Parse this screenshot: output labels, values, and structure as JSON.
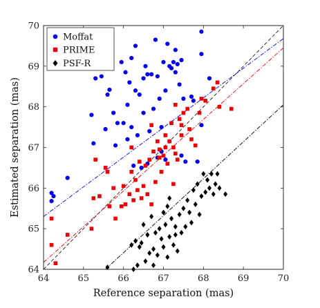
{
  "chart_data": {
    "type": "scatter",
    "xlabel": "Reference separation (mas)",
    "ylabel": "Estimated separation (mas)",
    "xlim": [
      64,
      70
    ],
    "ylim": [
      64,
      70
    ],
    "xticks": [
      "64",
      "65",
      "66",
      "67",
      "68",
      "69",
      "70"
    ],
    "yticks": [
      "64",
      "65",
      "66",
      "67",
      "68",
      "69",
      "70"
    ],
    "grid": false,
    "legend_position": "top-left",
    "identity_line": {
      "from": [
        64,
        64
      ],
      "to": [
        70,
        70
      ],
      "color": "#000000",
      "style": "dashed"
    },
    "series": [
      {
        "name": "Moffat",
        "marker": "circle",
        "color": "#0000ee",
        "fit": {
          "slope": 0.73,
          "intercept": 18.58
        },
        "points": [
          [
            64.2,
            65.88
          ],
          [
            64.25,
            65.8
          ],
          [
            64.2,
            65.68
          ],
          [
            64.6,
            66.25
          ],
          [
            65.2,
            67.8
          ],
          [
            65.3,
            68.7
          ],
          [
            65.25,
            67.1
          ],
          [
            65.45,
            68.75
          ],
          [
            65.55,
            67.45
          ],
          [
            65.6,
            68.3
          ],
          [
            65.65,
            68.42
          ],
          [
            65.75,
            67.85
          ],
          [
            65.8,
            67.05
          ],
          [
            65.85,
            67.6
          ],
          [
            65.95,
            69.1
          ],
          [
            66.0,
            67.6
          ],
          [
            66.05,
            68.85
          ],
          [
            66.1,
            67.2
          ],
          [
            66.1,
            68.05
          ],
          [
            66.15,
            68.6
          ],
          [
            66.2,
            69.2
          ],
          [
            66.2,
            67.5
          ],
          [
            66.25,
            66.55
          ],
          [
            66.3,
            68.4
          ],
          [
            66.3,
            69.5
          ],
          [
            66.35,
            67.3
          ],
          [
            66.4,
            68.3
          ],
          [
            66.45,
            66.5
          ],
          [
            66.5,
            68.7
          ],
          [
            66.5,
            67.85
          ],
          [
            66.55,
            69.0
          ],
          [
            66.6,
            66.6
          ],
          [
            66.6,
            68.8
          ],
          [
            66.65,
            67.4
          ],
          [
            66.7,
            68.8
          ],
          [
            66.75,
            67.95
          ],
          [
            66.8,
            69.65
          ],
          [
            66.85,
            68.75
          ],
          [
            66.85,
            66.75
          ],
          [
            66.9,
            68.2
          ],
          [
            66.95,
            67.5
          ],
          [
            67.0,
            69.1
          ],
          [
            67.05,
            68.4
          ],
          [
            67.1,
            69.55
          ],
          [
            67.15,
            69.0
          ],
          [
            67.15,
            67.15
          ],
          [
            67.2,
            68.95
          ],
          [
            67.25,
            69.1
          ],
          [
            67.3,
            69.4
          ],
          [
            67.3,
            68.85
          ],
          [
            67.35,
            69.05
          ],
          [
            67.4,
            68.55
          ],
          [
            67.45,
            69.15
          ],
          [
            67.45,
            66.8
          ],
          [
            67.5,
            68.2
          ],
          [
            67.55,
            66.65
          ],
          [
            67.7,
            68.25
          ],
          [
            67.75,
            68.15
          ],
          [
            67.85,
            66.65
          ],
          [
            67.95,
            67.55
          ],
          [
            67.95,
            69.3
          ],
          [
            67.95,
            69.85
          ],
          [
            68.15,
            68.7
          ],
          [
            67.05,
            66.7
          ],
          [
            66.95,
            66.9
          ]
        ]
      },
      {
        "name": "PRIME",
        "marker": "square",
        "color": "#ee0000",
        "fit": {
          "slope": 0.88,
          "intercept": 7.85
        },
        "points": [
          [
            64.2,
            65.25
          ],
          [
            64.2,
            64.6
          ],
          [
            64.3,
            64.15
          ],
          [
            64.6,
            64.85
          ],
          [
            65.2,
            65.0
          ],
          [
            65.25,
            65.75
          ],
          [
            65.3,
            66.7
          ],
          [
            65.4,
            65.8
          ],
          [
            65.55,
            66.5
          ],
          [
            65.6,
            66.4
          ],
          [
            65.65,
            65.55
          ],
          [
            65.75,
            66.0
          ],
          [
            65.8,
            65.25
          ],
          [
            65.95,
            65.55
          ],
          [
            66.0,
            66.05
          ],
          [
            66.05,
            65.6
          ],
          [
            66.15,
            65.85
          ],
          [
            66.2,
            66.4
          ],
          [
            66.2,
            67.0
          ],
          [
            66.25,
            65.7
          ],
          [
            66.3,
            66.2
          ],
          [
            66.35,
            65.95
          ],
          [
            66.4,
            66.65
          ],
          [
            66.45,
            65.75
          ],
          [
            66.5,
            66.05
          ],
          [
            66.55,
            66.55
          ],
          [
            66.6,
            65.85
          ],
          [
            66.65,
            66.7
          ],
          [
            66.7,
            65.6
          ],
          [
            66.7,
            67.55
          ],
          [
            66.75,
            66.9
          ],
          [
            66.8,
            66.15
          ],
          [
            66.85,
            67.15
          ],
          [
            66.9,
            66.75
          ],
          [
            66.95,
            66.4
          ],
          [
            67.0,
            66.8
          ],
          [
            67.05,
            67.0
          ],
          [
            67.05,
            67.3
          ],
          [
            67.1,
            66.6
          ],
          [
            67.15,
            67.15
          ],
          [
            67.2,
            67.6
          ],
          [
            67.25,
            67.0
          ],
          [
            67.3,
            66.85
          ],
          [
            67.35,
            66.7
          ],
          [
            67.4,
            67.7
          ],
          [
            67.45,
            67.55
          ],
          [
            67.5,
            67.85
          ],
          [
            67.6,
            67.95
          ],
          [
            67.65,
            67.45
          ],
          [
            67.7,
            67.2
          ],
          [
            67.8,
            67.05
          ],
          [
            67.9,
            67.85
          ],
          [
            67.95,
            68.2
          ],
          [
            68.05,
            68.15
          ],
          [
            68.25,
            68.45
          ],
          [
            68.35,
            68.6
          ],
          [
            68.4,
            68.0
          ],
          [
            68.7,
            67.95
          ],
          [
            67.3,
            68.05
          ],
          [
            67.45,
            67.3
          ],
          [
            67.25,
            66.1
          ],
          [
            66.9,
            66.95
          ]
        ]
      },
      {
        "name": "PSF-R",
        "marker": "diamond",
        "color": "#000000",
        "fit": {
          "slope": 0.91,
          "intercept": 4.35
        },
        "points": [
          [
            65.6,
            64.05
          ],
          [
            66.2,
            64.6
          ],
          [
            66.25,
            64.0
          ],
          [
            66.3,
            64.7
          ],
          [
            66.35,
            64.1
          ],
          [
            66.4,
            64.55
          ],
          [
            66.45,
            64.65
          ],
          [
            66.5,
            65.1
          ],
          [
            66.55,
            64.2
          ],
          [
            66.6,
            64.85
          ],
          [
            66.65,
            64.4
          ],
          [
            66.7,
            65.3
          ],
          [
            66.75,
            64.5
          ],
          [
            66.8,
            64.9
          ],
          [
            66.85,
            64.35
          ],
          [
            66.9,
            65.0
          ],
          [
            66.95,
            64.75
          ],
          [
            67.0,
            65.4
          ],
          [
            67.0,
            64.55
          ],
          [
            67.05,
            65.1
          ],
          [
            67.1,
            64.3
          ],
          [
            67.15,
            64.8
          ],
          [
            67.2,
            65.25
          ],
          [
            67.25,
            64.6
          ],
          [
            67.3,
            65.05
          ],
          [
            67.35,
            64.45
          ],
          [
            67.4,
            65.35
          ],
          [
            67.45,
            64.9
          ],
          [
            67.5,
            65.5
          ],
          [
            67.55,
            65.05
          ],
          [
            67.6,
            65.7
          ],
          [
            67.65,
            65.4
          ],
          [
            67.7,
            65.15
          ],
          [
            67.75,
            65.95
          ],
          [
            67.8,
            65.6
          ],
          [
            67.85,
            66.1
          ],
          [
            67.9,
            65.35
          ],
          [
            67.95,
            65.8
          ],
          [
            68.0,
            66.35
          ],
          [
            68.05,
            65.9
          ],
          [
            68.1,
            66.2
          ],
          [
            68.15,
            66.0
          ],
          [
            68.2,
            66.35
          ],
          [
            68.25,
            65.85
          ],
          [
            68.3,
            66.1
          ],
          [
            68.35,
            66.35
          ],
          [
            68.4,
            66.0
          ],
          [
            68.55,
            65.85
          ],
          [
            67.15,
            65.75
          ],
          [
            67.1,
            65.55
          ],
          [
            67.3,
            64.85
          ],
          [
            66.75,
            64.1
          ]
        ]
      }
    ]
  }
}
